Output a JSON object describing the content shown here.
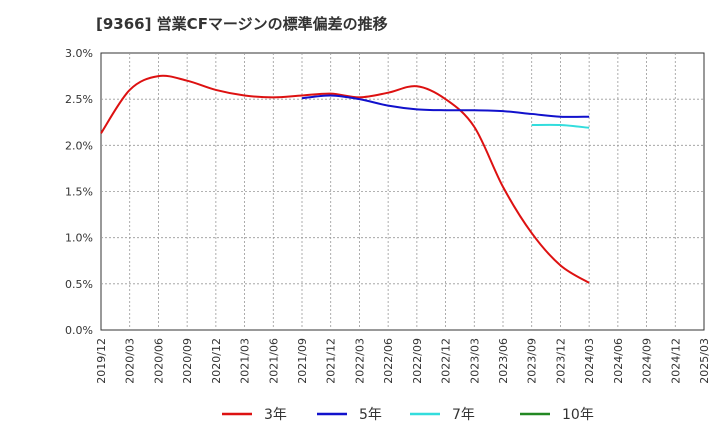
{
  "chart_data": {
    "type": "line",
    "title": "[9366]  営業CFマージンの標準偏差の推移",
    "x": [
      "2019/12",
      "2020/03",
      "2020/06",
      "2020/09",
      "2020/12",
      "2021/03",
      "2021/06",
      "2021/09",
      "2021/12",
      "2022/03",
      "2022/06",
      "2022/09",
      "2022/12",
      "2023/03",
      "2023/06",
      "2023/09",
      "2023/12",
      "2024/03",
      "2024/06",
      "2024/09",
      "2024/12",
      "2025/03"
    ],
    "y_ticks": [
      "0.0%",
      "0.5%",
      "1.0%",
      "1.5%",
      "2.0%",
      "2.5%",
      "3.0%"
    ],
    "ylim": [
      0,
      3.0
    ],
    "grid": true,
    "legend_position": "bottom",
    "series": [
      {
        "name": "3年",
        "color": "#dd1111",
        "values": [
          2.13,
          2.6,
          2.75,
          2.7,
          2.6,
          2.54,
          2.52,
          2.54,
          2.56,
          2.52,
          2.57,
          2.64,
          2.5,
          2.2,
          1.55,
          1.05,
          0.7,
          0.51,
          null,
          null,
          null,
          null
        ]
      },
      {
        "name": "5年",
        "color": "#1111cc",
        "values": [
          null,
          null,
          null,
          null,
          null,
          null,
          null,
          2.51,
          2.54,
          2.5,
          2.43,
          2.39,
          2.38,
          2.38,
          2.37,
          2.34,
          2.31,
          2.31,
          null,
          null,
          null,
          null
        ]
      },
      {
        "name": "7年",
        "color": "#33dddd",
        "values": [
          null,
          null,
          null,
          null,
          null,
          null,
          null,
          null,
          null,
          null,
          null,
          null,
          null,
          null,
          null,
          2.22,
          2.22,
          2.19,
          null,
          null,
          null,
          null
        ]
      },
      {
        "name": "10年",
        "color": "#228822",
        "values": [
          null,
          null,
          null,
          null,
          null,
          null,
          null,
          null,
          null,
          null,
          null,
          null,
          null,
          null,
          null,
          null,
          null,
          null,
          null,
          null,
          null,
          null
        ]
      }
    ]
  }
}
